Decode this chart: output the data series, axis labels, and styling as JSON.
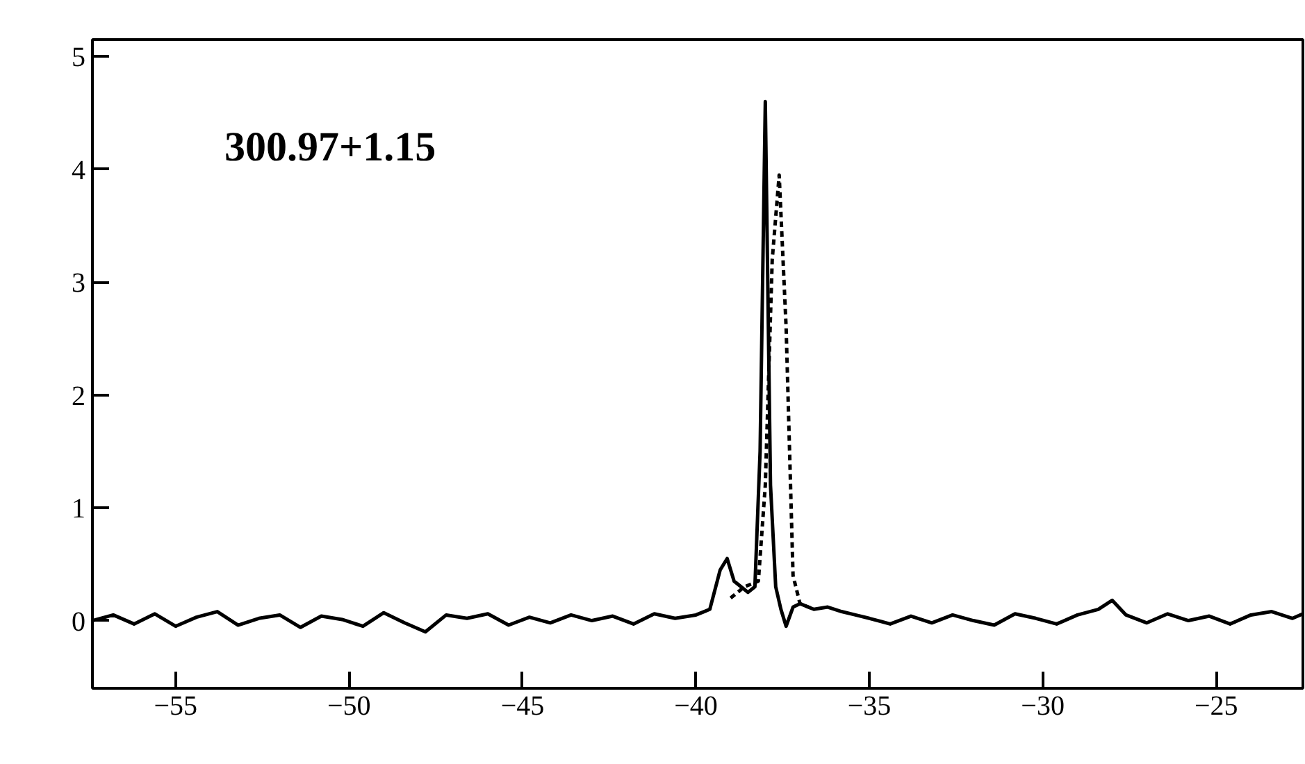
{
  "chart_data": {
    "type": "line",
    "annotations": [
      "300.97+1.15"
    ],
    "xlim": [
      -57.4,
      -22.5
    ],
    "ylim": [
      -0.6,
      5.15
    ],
    "xticks": [
      -55,
      -50,
      -45,
      -40,
      -35,
      -30,
      -25
    ],
    "yticks": [
      0,
      1,
      2,
      3,
      4,
      5
    ],
    "grid": false,
    "series": [
      {
        "color": "#000000",
        "line_style": "solid",
        "x": [
          -57.4,
          -56.8,
          -56.2,
          -55.6,
          -55.0,
          -54.4,
          -53.8,
          -53.2,
          -52.6,
          -52.0,
          -51.4,
          -50.8,
          -50.2,
          -49.6,
          -49.0,
          -48.4,
          -47.8,
          -47.2,
          -46.6,
          -46.0,
          -45.4,
          -44.8,
          -44.2,
          -43.6,
          -43.0,
          -42.4,
          -41.8,
          -41.2,
          -40.6,
          -40.0,
          -39.6,
          -39.3,
          -39.1,
          -38.9,
          -38.7,
          -38.5,
          -38.3,
          -38.15,
          -38.0,
          -37.85,
          -37.7,
          -37.55,
          -37.4,
          -37.2,
          -37.0,
          -36.6,
          -36.2,
          -35.8,
          -35.4,
          -35.0,
          -34.4,
          -33.8,
          -33.2,
          -32.6,
          -32.0,
          -31.4,
          -30.8,
          -30.2,
          -29.6,
          -29.0,
          -28.4,
          -28.0,
          -27.6,
          -27.0,
          -26.4,
          -25.8,
          -25.2,
          -24.6,
          -24.0,
          -23.4,
          -22.8,
          -22.5
        ],
        "values": [
          0.0,
          0.05,
          -0.03,
          0.06,
          -0.05,
          0.03,
          0.08,
          -0.04,
          0.02,
          0.05,
          -0.06,
          0.04,
          0.01,
          -0.05,
          0.07,
          -0.02,
          -0.1,
          0.05,
          0.02,
          0.06,
          -0.04,
          0.03,
          -0.02,
          0.05,
          0.0,
          0.04,
          -0.03,
          0.06,
          0.02,
          0.05,
          0.1,
          0.45,
          0.55,
          0.35,
          0.3,
          0.25,
          0.3,
          1.5,
          4.6,
          1.2,
          0.3,
          0.1,
          -0.05,
          0.12,
          0.15,
          0.1,
          0.12,
          0.08,
          0.05,
          0.02,
          -0.03,
          0.04,
          -0.02,
          0.05,
          0.0,
          -0.04,
          0.06,
          0.02,
          -0.03,
          0.05,
          0.1,
          0.18,
          0.05,
          -0.02,
          0.06,
          0.0,
          0.04,
          -0.03,
          0.05,
          0.08,
          0.02,
          0.06
        ]
      },
      {
        "color": "#000000",
        "line_style": "dashed",
        "x": [
          -39.0,
          -38.6,
          -38.2,
          -38.0,
          -37.8,
          -37.6,
          -37.4,
          -37.2,
          -37.0,
          -36.6
        ],
        "values": [
          0.2,
          0.3,
          0.35,
          1.2,
          3.2,
          3.95,
          2.6,
          0.4,
          0.15,
          0.1
        ]
      }
    ]
  }
}
